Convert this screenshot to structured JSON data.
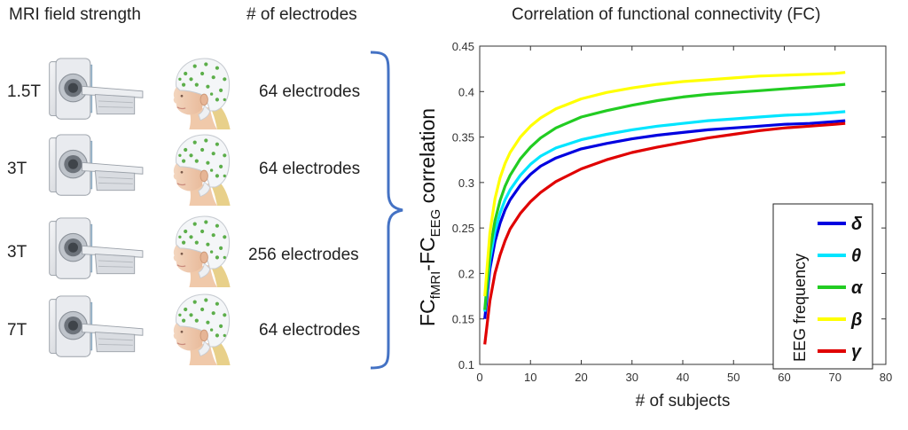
{
  "left_panel": {
    "header_field": "MRI field strength",
    "header_electrodes": "# of electrodes",
    "rows": [
      {
        "field": "1.5T",
        "electrodes": "64 electrodes"
      },
      {
        "field": "3T",
        "electrodes": "64 electrodes"
      },
      {
        "field": "3T",
        "electrodes": "256 electrodes"
      },
      {
        "field": "7T",
        "electrodes": "64 electrodes"
      }
    ]
  },
  "colors": {
    "bracket": "#4472c4",
    "delta": "#0000e0",
    "theta": "#00e5ff",
    "alpha": "#22cc22",
    "beta": "#ffff00",
    "gamma": "#e00000"
  },
  "chart_data": {
    "type": "line",
    "title": "Correlation of functional connectivity (FC)",
    "xlabel": "# of subjects",
    "ylabel_main": "FC",
    "ylabel_sub1": "fMRI",
    "ylabel_dash": "-FC",
    "ylabel_sub2": "EEG",
    "ylabel_rest": " correlation",
    "xlim": [
      0,
      80
    ],
    "ylim": [
      0.1,
      0.45
    ],
    "xticks": [
      0,
      10,
      20,
      30,
      40,
      50,
      60,
      70,
      80
    ],
    "yticks": [
      0.1,
      0.15,
      0.2,
      0.25,
      0.3,
      0.35,
      0.4,
      0.45
    ],
    "xtick_labels": [
      "0",
      "10",
      "20",
      "30",
      "40",
      "50",
      "60",
      "70",
      "80"
    ],
    "ytick_labels": [
      "0.1",
      "0.15",
      "0.2",
      "0.25",
      "0.3",
      "0.35",
      "0.4",
      "0.45"
    ],
    "legend_title": "EEG frequency",
    "legend_position": "bottom-right",
    "grid": false,
    "x": [
      1,
      2,
      3,
      4,
      5,
      6,
      8,
      10,
      12,
      15,
      20,
      25,
      30,
      35,
      40,
      45,
      50,
      55,
      60,
      65,
      70,
      72
    ],
    "series": [
      {
        "name": "δ",
        "color": "#0000e0",
        "values": [
          0.15,
          0.205,
          0.235,
          0.255,
          0.27,
          0.281,
          0.297,
          0.309,
          0.318,
          0.327,
          0.337,
          0.343,
          0.348,
          0.352,
          0.355,
          0.358,
          0.36,
          0.362,
          0.364,
          0.365,
          0.367,
          0.368
        ]
      },
      {
        "name": "θ",
        "color": "#00e5ff",
        "values": [
          0.158,
          0.215,
          0.246,
          0.266,
          0.281,
          0.292,
          0.308,
          0.32,
          0.329,
          0.338,
          0.347,
          0.353,
          0.358,
          0.362,
          0.365,
          0.368,
          0.37,
          0.372,
          0.374,
          0.375,
          0.377,
          0.378
        ]
      },
      {
        "name": "α",
        "color": "#22cc22",
        "values": [
          0.16,
          0.225,
          0.258,
          0.28,
          0.296,
          0.308,
          0.326,
          0.339,
          0.349,
          0.36,
          0.372,
          0.379,
          0.385,
          0.39,
          0.394,
          0.397,
          0.399,
          0.401,
          0.403,
          0.405,
          0.407,
          0.408
        ]
      },
      {
        "name": "β",
        "color": "#ffff00",
        "values": [
          0.175,
          0.245,
          0.282,
          0.305,
          0.321,
          0.333,
          0.35,
          0.362,
          0.371,
          0.381,
          0.392,
          0.399,
          0.404,
          0.408,
          0.411,
          0.413,
          0.415,
          0.417,
          0.418,
          0.419,
          0.42,
          0.421
        ]
      },
      {
        "name": "γ",
        "color": "#e00000",
        "values": [
          0.122,
          0.17,
          0.2,
          0.22,
          0.236,
          0.249,
          0.266,
          0.279,
          0.289,
          0.301,
          0.315,
          0.325,
          0.333,
          0.339,
          0.344,
          0.349,
          0.353,
          0.357,
          0.36,
          0.362,
          0.364,
          0.365
        ]
      }
    ]
  }
}
